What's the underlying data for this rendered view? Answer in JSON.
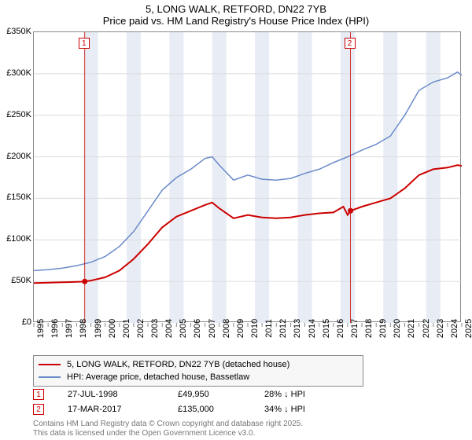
{
  "title": {
    "line1": "5, LONG WALK, RETFORD, DN22 7YB",
    "line2": "Price paid vs. HM Land Registry's House Price Index (HPI)"
  },
  "chart": {
    "type": "line",
    "background_color": "#ffffff",
    "grid_color": "#dcdcdc",
    "border_color": "#8a8a8a",
    "shade_color": "#e8edf5",
    "title_fontsize": 13,
    "tick_fontsize": 11,
    "x": {
      "min": 1995,
      "max": 2025,
      "ticks": [
        1995,
        1996,
        1997,
        1998,
        1999,
        2000,
        2001,
        2002,
        2003,
        2004,
        2005,
        2006,
        2007,
        2008,
        2009,
        2010,
        2011,
        2012,
        2013,
        2014,
        2015,
        2016,
        2017,
        2018,
        2019,
        2020,
        2021,
        2022,
        2023,
        2024,
        2025
      ]
    },
    "y": {
      "min": 0,
      "max": 350000,
      "ticks": [
        0,
        50000,
        100000,
        150000,
        200000,
        250000,
        300000,
        350000
      ],
      "tick_labels": [
        "£0",
        "£50K",
        "£100K",
        "£150K",
        "£200K",
        "£250K",
        "£300K",
        "£350K"
      ]
    },
    "shaded_bands": [
      {
        "from": 1998.5,
        "to": 1999.5
      },
      {
        "from": 2001.5,
        "to": 2002.5
      },
      {
        "from": 2004.5,
        "to": 2005.5
      },
      {
        "from": 2007.5,
        "to": 2008.5
      },
      {
        "from": 2010.5,
        "to": 2011.5
      },
      {
        "from": 2013.5,
        "to": 2014.5
      },
      {
        "from": 2016.5,
        "to": 2017.5
      },
      {
        "from": 2019.5,
        "to": 2020.5
      },
      {
        "from": 2022.5,
        "to": 2023.5
      }
    ],
    "series": [
      {
        "name": "price_paid",
        "label": "5, LONG WALK, RETFORD, DN22 7YB (detached house)",
        "color": "#cc0000",
        "line_width": 2,
        "data": [
          [
            1995,
            48000
          ],
          [
            1996,
            48500
          ],
          [
            1997,
            49000
          ],
          [
            1998,
            49500
          ],
          [
            1998.57,
            49950
          ],
          [
            1999,
            51000
          ],
          [
            2000,
            55000
          ],
          [
            2001,
            63000
          ],
          [
            2002,
            77000
          ],
          [
            2003,
            95000
          ],
          [
            2004,
            115000
          ],
          [
            2005,
            128000
          ],
          [
            2006,
            135000
          ],
          [
            2007,
            142000
          ],
          [
            2007.5,
            145000
          ],
          [
            2008,
            138000
          ],
          [
            2009,
            126000
          ],
          [
            2010,
            130000
          ],
          [
            2011,
            127000
          ],
          [
            2012,
            126000
          ],
          [
            2013,
            127000
          ],
          [
            2014,
            130000
          ],
          [
            2015,
            132000
          ],
          [
            2016,
            133000
          ],
          [
            2016.7,
            140000
          ],
          [
            2017,
            130000
          ],
          [
            2017.2,
            135000
          ],
          [
            2018,
            140000
          ],
          [
            2019,
            145000
          ],
          [
            2020,
            150000
          ],
          [
            2021,
            162000
          ],
          [
            2022,
            178000
          ],
          [
            2023,
            185000
          ],
          [
            2024,
            187000
          ],
          [
            2024.7,
            190000
          ],
          [
            2025,
            189000
          ]
        ]
      },
      {
        "name": "hpi",
        "label": "HPI: Average price, detached house, Bassetlaw",
        "color": "#6a8bc9",
        "line_width": 1.5,
        "data": [
          [
            1995,
            63000
          ],
          [
            1996,
            64000
          ],
          [
            1997,
            66000
          ],
          [
            1998,
            69000
          ],
          [
            1999,
            73000
          ],
          [
            2000,
            80000
          ],
          [
            2001,
            92000
          ],
          [
            2002,
            110000
          ],
          [
            2003,
            135000
          ],
          [
            2004,
            160000
          ],
          [
            2005,
            175000
          ],
          [
            2006,
            185000
          ],
          [
            2007,
            198000
          ],
          [
            2007.5,
            200000
          ],
          [
            2008,
            190000
          ],
          [
            2009,
            172000
          ],
          [
            2010,
            178000
          ],
          [
            2011,
            173000
          ],
          [
            2012,
            172000
          ],
          [
            2013,
            174000
          ],
          [
            2014,
            180000
          ],
          [
            2015,
            185000
          ],
          [
            2016,
            193000
          ],
          [
            2017,
            200000
          ],
          [
            2018,
            208000
          ],
          [
            2019,
            215000
          ],
          [
            2020,
            225000
          ],
          [
            2021,
            250000
          ],
          [
            2022,
            280000
          ],
          [
            2023,
            290000
          ],
          [
            2024,
            295000
          ],
          [
            2024.7,
            302000
          ],
          [
            2025,
            298000
          ]
        ]
      }
    ],
    "markers": [
      {
        "id": "1",
        "x": 1998.57,
        "y": 49950,
        "color": "#cc0000"
      },
      {
        "id": "2",
        "x": 2017.2,
        "y": 135000,
        "color": "#cc0000"
      }
    ]
  },
  "legend": {
    "items": [
      {
        "color": "#cc0000",
        "label": "5, LONG WALK, RETFORD, DN22 7YB (detached house)",
        "width": 2
      },
      {
        "color": "#6a8bc9",
        "label": "HPI: Average price, detached house, Bassetlaw",
        "width": 1.5
      }
    ]
  },
  "marker_table": [
    {
      "id": "1",
      "color": "#cc0000",
      "date": "27-JUL-1998",
      "price": "£49,950",
      "delta": "28% ↓ HPI"
    },
    {
      "id": "2",
      "color": "#cc0000",
      "date": "17-MAR-2017",
      "price": "£135,000",
      "delta": "34% ↓ HPI"
    }
  ],
  "footer": {
    "line1": "Contains HM Land Registry data © Crown copyright and database right 2025.",
    "line2": "This data is licensed under the Open Government Licence v3.0."
  }
}
